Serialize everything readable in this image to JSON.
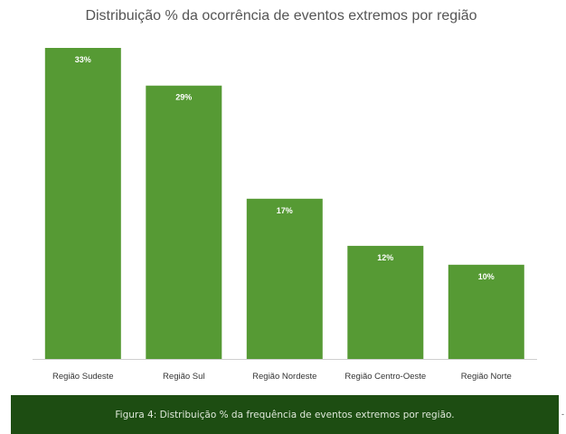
{
  "chart_data": {
    "type": "bar",
    "title": "Distribuição % da ocorrência de eventos extremos por região",
    "categories": [
      "Região Sudeste",
      "Região Sul",
      "Região Nordeste",
      "Região Centro-Oeste",
      "Região Norte"
    ],
    "values": [
      33,
      29,
      17,
      12,
      10
    ],
    "data_labels": [
      "33%",
      "29%",
      "17%",
      "12%",
      "10%"
    ],
    "ylim": [
      0,
      35
    ],
    "grid": false,
    "legend": "none",
    "bar_color": "#569a34"
  },
  "caption": "Figura 4: Distribuição % da frequência de eventos extremos por região.",
  "caption_bg": "#1d4d12",
  "stray_mark": "-"
}
